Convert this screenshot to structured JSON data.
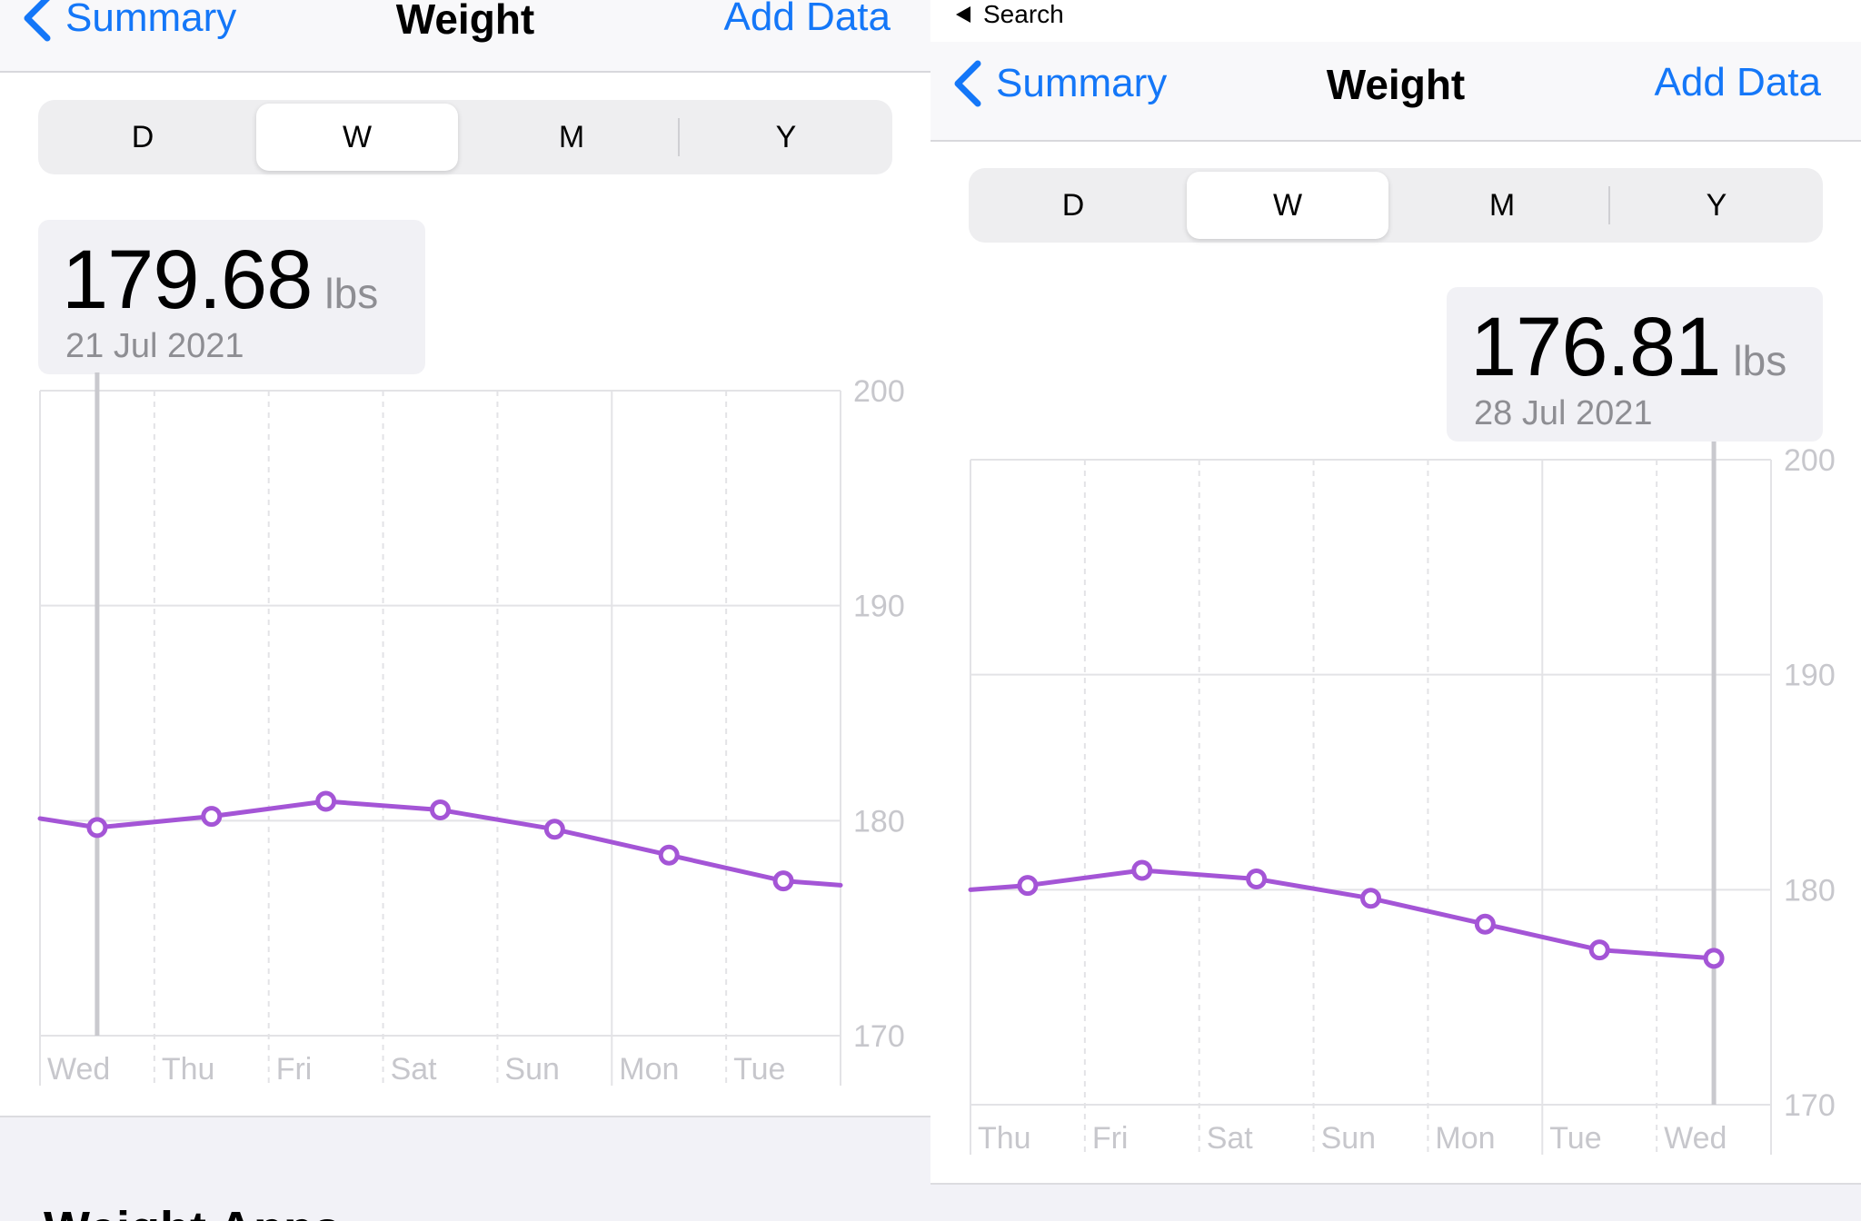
{
  "left": {
    "nav": {
      "back_label": "Summary",
      "title": "Weight",
      "add_label": "Add Data"
    },
    "segments": [
      {
        "label": "D",
        "selected": false
      },
      {
        "label": "W",
        "selected": true
      },
      {
        "label": "M",
        "selected": false
      },
      {
        "label": "Y",
        "selected": false
      }
    ],
    "callout": {
      "value": "179.68",
      "unit": "lbs",
      "date": "21 Jul 2021"
    },
    "section_title": "Weight Apps"
  },
  "right": {
    "status": {
      "back_app": "Search"
    },
    "nav": {
      "back_label": "Summary",
      "title": "Weight",
      "add_label": "Add Data"
    },
    "segments": [
      {
        "label": "D",
        "selected": false
      },
      {
        "label": "W",
        "selected": true
      },
      {
        "label": "M",
        "selected": false
      },
      {
        "label": "Y",
        "selected": false
      }
    ],
    "callout": {
      "value": "176.81",
      "unit": "lbs",
      "date": "28 Jul 2021"
    }
  },
  "colors": {
    "accent": "#1477f8",
    "line": "#a455d6",
    "grid": "#e3e3e6",
    "axis_text": "#c7c7cc",
    "selection": "#c9c9ce"
  },
  "chart_data": [
    {
      "type": "line",
      "x": [
        "Wed",
        "Thu",
        "Fri",
        "Sat",
        "Sun",
        "Mon",
        "Tue"
      ],
      "values": [
        179.68,
        180.2,
        180.9,
        180.5,
        179.6,
        178.4,
        177.2
      ],
      "edge_left": 180.1,
      "edge_right": 177.0,
      "ylim": [
        170,
        200
      ],
      "yticks": [
        "170",
        "180",
        "190",
        "200"
      ],
      "selected_index": 0,
      "grid": true
    },
    {
      "type": "line",
      "x": [
        "Thu",
        "Fri",
        "Sat",
        "Sun",
        "Mon",
        "Tue",
        "Wed"
      ],
      "values": [
        180.2,
        180.9,
        180.5,
        179.6,
        178.4,
        177.2,
        176.81
      ],
      "edge_left": 180.0,
      "ylim": [
        170,
        200
      ],
      "yticks": [
        "170",
        "180",
        "190",
        "200"
      ],
      "selected_index": 6,
      "grid": true
    }
  ]
}
